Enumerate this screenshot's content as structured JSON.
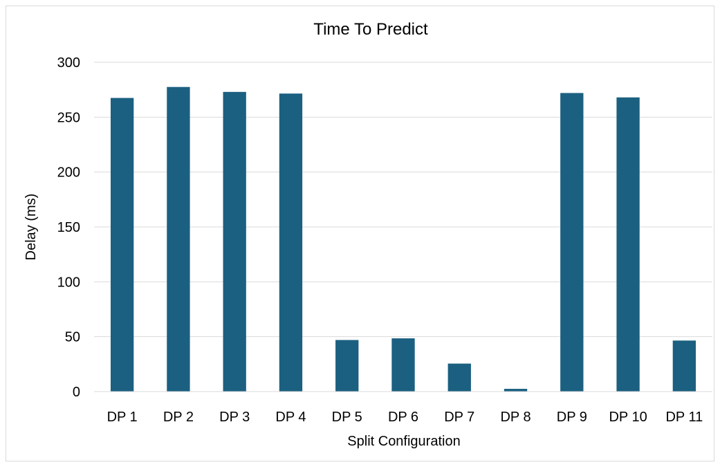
{
  "chart_data": {
    "type": "bar",
    "title": "Time To Predict",
    "xlabel": "Split Configuration",
    "ylabel": "Delay (ms)",
    "categories": [
      "DP 1",
      "DP 2",
      "DP 3",
      "DP 4",
      "DP 5",
      "DP 6",
      "DP 7",
      "DP 8",
      "DP 9",
      "DP 10",
      "DP 11"
    ],
    "values": [
      267.5,
      277.5,
      273,
      271.5,
      47,
      48.5,
      25.5,
      2.5,
      272,
      268,
      46.5
    ],
    "ylim": [
      0,
      300
    ],
    "yticks": [
      "0",
      "50",
      "100",
      "150",
      "200",
      "250",
      "300"
    ],
    "grid": true,
    "bar_color": "#1b6081",
    "grid_color": "#d9d9d9"
  }
}
